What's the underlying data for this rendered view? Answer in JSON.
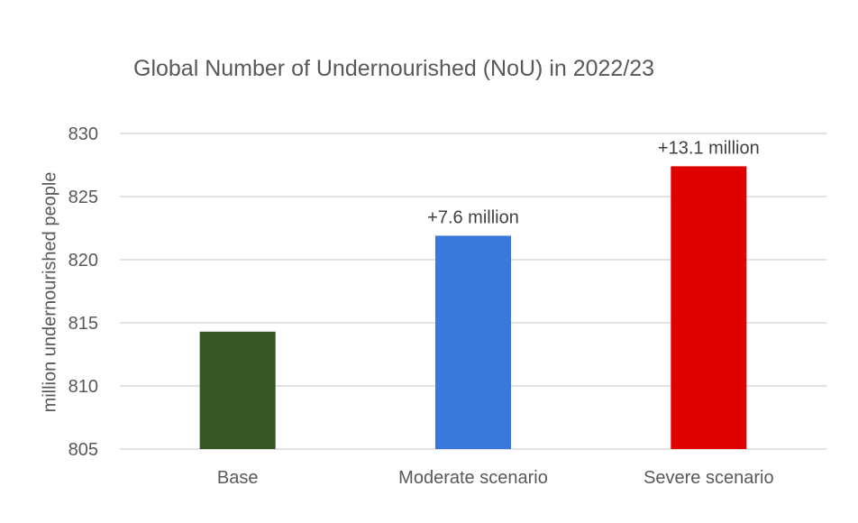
{
  "chart_data": {
    "type": "bar",
    "title": "Global Number of Undernourished (NoU) in 2022/23",
    "xlabel": "",
    "ylabel": "million undernourished people",
    "categories": [
      "Base",
      "Moderate scenario",
      "Severe scenario"
    ],
    "values": [
      814.3,
      821.9,
      827.4
    ],
    "data_labels": [
      "",
      "+7.6 million",
      "+13.1 million"
    ],
    "colors": [
      "#375623",
      "#3b78db",
      "#e00000"
    ],
    "ylim": [
      805,
      830
    ],
    "yticks": [
      805,
      810,
      815,
      820,
      825,
      830
    ],
    "grid": true,
    "legend": "none"
  }
}
